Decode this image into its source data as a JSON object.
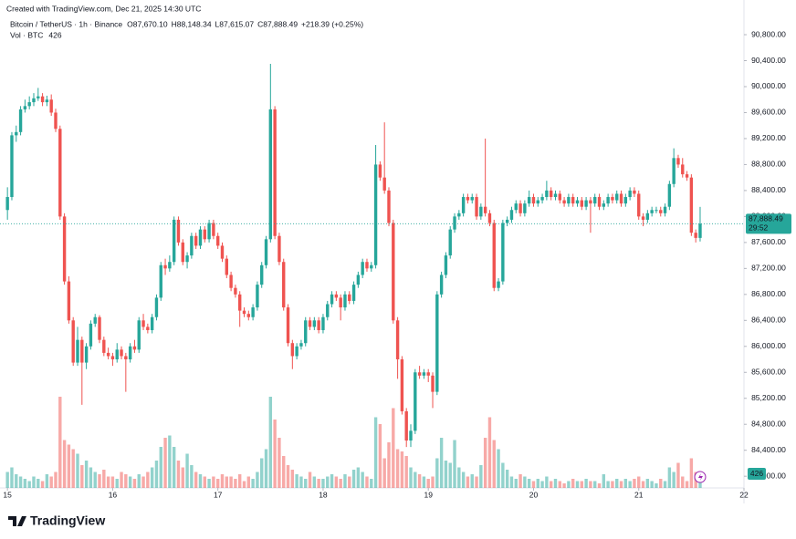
{
  "watermark": "Created with TradingView.com, Dec 21, 2025 14:30 UTC",
  "brand": "TradingView",
  "chart_data": {
    "type": "candlestick",
    "symbol": "Bitcoin / TetherUS · 1h · Binance",
    "ohlc": [
      "O87,670.10",
      "H88,148.34",
      "L87,615.07",
      "C87,888.49"
    ],
    "change": "+218.39 (+0.25%)",
    "volume_title": "Vol · BTC",
    "last_price_label": "87,888.49",
    "countdown": "29:52",
    "up_color": "#26a69a",
    "down_color": "#ef5350",
    "xlim": [
      -1.7,
      168
    ],
    "xticks": [
      {
        "value": 0,
        "label": "15"
      },
      {
        "value": 24,
        "label": "16"
      },
      {
        "value": 48,
        "label": "17"
      },
      {
        "value": 72,
        "label": "18"
      },
      {
        "value": 96,
        "label": "19"
      },
      {
        "value": 120,
        "label": "20"
      },
      {
        "value": 144,
        "label": "21"
      },
      {
        "value": 168,
        "label": "22"
      }
    ],
    "ylim": [
      83820,
      91334
    ],
    "yticks": [
      {
        "value": 84000,
        "label": "84,000.00"
      },
      {
        "value": 84400,
        "label": "84,400.00"
      },
      {
        "value": 84800,
        "label": "84,800.00"
      },
      {
        "value": 85200,
        "label": "85,200.00"
      },
      {
        "value": 85600,
        "label": "85,600.00"
      },
      {
        "value": 86000,
        "label": "86,000.00"
      },
      {
        "value": 86400,
        "label": "86,400.00"
      },
      {
        "value": 86800,
        "label": "86,800.00"
      },
      {
        "value": 87200,
        "label": "87,200.00"
      },
      {
        "value": 87600,
        "label": "87,600.00"
      },
      {
        "value": 88000,
        "label": "88,000.00"
      },
      {
        "value": 88400,
        "label": "88,400.00"
      },
      {
        "value": 88800,
        "label": "88,800.00"
      },
      {
        "value": 89200,
        "label": "89,200.00"
      },
      {
        "value": 89600,
        "label": "89,600.00"
      },
      {
        "value": 90000,
        "label": "90,000.00"
      },
      {
        "value": 90400,
        "label": "90,400.00"
      },
      {
        "value": 90800,
        "label": "90,800.00"
      }
    ],
    "vlim": [
      0,
      4800
    ],
    "candles": [
      [
        88100,
        88450,
        87950,
        88300,
        700
      ],
      [
        88300,
        89300,
        88250,
        89250,
        900
      ],
      [
        89250,
        89400,
        89150,
        89300,
        600
      ],
      [
        89300,
        89700,
        89250,
        89650,
        500
      ],
      [
        89650,
        89800,
        89600,
        89700,
        400
      ],
      [
        89700,
        89850,
        89650,
        89760,
        300
      ],
      [
        89760,
        89900,
        89700,
        89820,
        500
      ],
      [
        89820,
        89980,
        89780,
        89850,
        400
      ],
      [
        89850,
        89900,
        89700,
        89760,
        300
      ],
      [
        89760,
        89860,
        89700,
        89800,
        600
      ],
      [
        89800,
        89880,
        89550,
        89600,
        500
      ],
      [
        89600,
        89660,
        89300,
        89350,
        700
      ],
      [
        89350,
        89400,
        87950,
        88000,
        4000
      ],
      [
        88000,
        88050,
        86950,
        87000,
        2100
      ],
      [
        87000,
        87080,
        86350,
        86400,
        1900
      ],
      [
        86400,
        86450,
        85700,
        85750,
        1700
      ],
      [
        85750,
        86300,
        85700,
        86100,
        1500
      ],
      [
        86100,
        86150,
        85100,
        85750,
        1000
      ],
      [
        85750,
        86050,
        85650,
        86000,
        1200
      ],
      [
        86000,
        86400,
        85950,
        86350,
        900
      ],
      [
        86350,
        86500,
        86300,
        86450,
        700
      ],
      [
        86450,
        86480,
        86050,
        86100,
        600
      ],
      [
        86100,
        86150,
        85850,
        85900,
        800
      ],
      [
        85900,
        85980,
        85800,
        85850,
        500
      ],
      [
        85850,
        85900,
        85700,
        85800,
        500
      ],
      [
        85800,
        86050,
        85750,
        85950,
        400
      ],
      [
        85950,
        86000,
        85800,
        85850,
        700
      ],
      [
        85850,
        85900,
        85300,
        85800,
        600
      ],
      [
        85800,
        86050,
        85750,
        86000,
        500
      ],
      [
        86000,
        86100,
        85900,
        85950,
        400
      ],
      [
        85950,
        86450,
        85900,
        86400,
        600
      ],
      [
        86400,
        86500,
        86250,
        86300,
        500
      ],
      [
        86300,
        86350,
        86200,
        86250,
        700
      ],
      [
        86250,
        86500,
        86200,
        86450,
        900
      ],
      [
        86450,
        86800,
        86400,
        86750,
        1200
      ],
      [
        86750,
        87300,
        86700,
        87250,
        1800
      ],
      [
        87250,
        87350,
        87100,
        87200,
        2200
      ],
      [
        87200,
        87400,
        87150,
        87300,
        2300
      ],
      [
        87300,
        88000,
        87250,
        87950,
        1800
      ],
      [
        87950,
        88000,
        87550,
        87600,
        1200
      ],
      [
        87600,
        87650,
        87250,
        87300,
        900
      ],
      [
        87300,
        87450,
        87200,
        87400,
        1500
      ],
      [
        87400,
        87750,
        87350,
        87700,
        1000
      ],
      [
        87700,
        87750,
        87500,
        87550,
        700
      ],
      [
        87550,
        87850,
        87500,
        87800,
        600
      ],
      [
        87800,
        87850,
        87600,
        87650,
        500
      ],
      [
        87650,
        87950,
        87600,
        87900,
        400
      ],
      [
        87900,
        87950,
        87650,
        87700,
        500
      ],
      [
        87700,
        87750,
        87500,
        87550,
        400
      ],
      [
        87550,
        87600,
        87300,
        87350,
        600
      ],
      [
        87350,
        87400,
        87050,
        87100,
        500
      ],
      [
        87100,
        87150,
        86850,
        86900,
        500
      ],
      [
        86900,
        86950,
        86750,
        86800,
        400
      ],
      [
        86800,
        86850,
        86300,
        86550,
        600
      ],
      [
        86550,
        86600,
        86450,
        86500,
        300
      ],
      [
        86500,
        86550,
        86400,
        86450,
        500
      ],
      [
        86450,
        86650,
        86400,
        86600,
        400
      ],
      [
        86600,
        87000,
        86550,
        86950,
        700
      ],
      [
        86950,
        87300,
        86900,
        87250,
        1300
      ],
      [
        87250,
        87700,
        87200,
        87650,
        1700
      ],
      [
        87650,
        90350,
        87600,
        89650,
        4000
      ],
      [
        89650,
        89700,
        87650,
        87700,
        3000
      ],
      [
        87700,
        87750,
        87250,
        87300,
        2200
      ],
      [
        87300,
        87350,
        86550,
        86600,
        1400
      ],
      [
        86600,
        86650,
        86000,
        86050,
        1000
      ],
      [
        86050,
        86100,
        85650,
        85850,
        800
      ],
      [
        85850,
        86050,
        85800,
        86000,
        600
      ],
      [
        86000,
        86100,
        85950,
        86050,
        500
      ],
      [
        86050,
        86450,
        86000,
        86400,
        400
      ],
      [
        86400,
        86450,
        86250,
        86300,
        700
      ],
      [
        86300,
        86450,
        86250,
        86400,
        500
      ],
      [
        86400,
        86450,
        86200,
        86250,
        400
      ],
      [
        86250,
        86500,
        86200,
        86450,
        400
      ],
      [
        86450,
        86700,
        86400,
        86650,
        500
      ],
      [
        86650,
        86850,
        86600,
        86800,
        600
      ],
      [
        86800,
        86850,
        86700,
        86750,
        500
      ],
      [
        86750,
        86800,
        86400,
        86600,
        400
      ],
      [
        86600,
        86850,
        86550,
        86800,
        600
      ],
      [
        86800,
        86850,
        86650,
        86700,
        500
      ],
      [
        86700,
        87000,
        86650,
        86950,
        800
      ],
      [
        86950,
        87150,
        86900,
        87100,
        900
      ],
      [
        87100,
        87350,
        87050,
        87300,
        700
      ],
      [
        87300,
        87350,
        87150,
        87200,
        500
      ],
      [
        87200,
        87300,
        87150,
        87250,
        400
      ],
      [
        87250,
        89100,
        87200,
        88800,
        3100
      ],
      [
        88800,
        88850,
        88550,
        88600,
        2800
      ],
      [
        88600,
        89450,
        88350,
        88400,
        1300
      ],
      [
        88400,
        88450,
        87850,
        87900,
        2000
      ],
      [
        87900,
        87950,
        86350,
        86400,
        3500
      ],
      [
        86400,
        86450,
        85500,
        85800,
        1700
      ],
      [
        85800,
        85850,
        84950,
        85000,
        1600
      ],
      [
        85000,
        85050,
        84450,
        84550,
        1400
      ],
      [
        84550,
        84800,
        84450,
        84700,
        900
      ],
      [
        84700,
        85650,
        84650,
        85600,
        700
      ],
      [
        85600,
        85700,
        85500,
        85550,
        600
      ],
      [
        85550,
        85650,
        85500,
        85600,
        500
      ],
      [
        85600,
        85650,
        85450,
        85550,
        400
      ],
      [
        85550,
        85600,
        85050,
        85300,
        500
      ],
      [
        85300,
        86850,
        85250,
        86800,
        1300
      ],
      [
        86800,
        87150,
        86750,
        87100,
        2200
      ],
      [
        87100,
        87450,
        87050,
        87400,
        1200
      ],
      [
        87400,
        87850,
        87350,
        87800,
        1100
      ],
      [
        87800,
        88050,
        87750,
        88000,
        2100
      ],
      [
        88000,
        88100,
        87950,
        88050,
        900
      ],
      [
        88050,
        88350,
        88000,
        88300,
        700
      ],
      [
        88300,
        88350,
        88200,
        88250,
        500
      ],
      [
        88250,
        88350,
        88200,
        88300,
        600
      ],
      [
        88300,
        88350,
        87950,
        88000,
        500
      ],
      [
        88000,
        88200,
        87950,
        88150,
        1000
      ],
      [
        88150,
        89200,
        88000,
        88050,
        2200
      ],
      [
        88050,
        88100,
        87850,
        87900,
        3100
      ],
      [
        87900,
        87950,
        86850,
        86900,
        2100
      ],
      [
        86900,
        87050,
        86850,
        87000,
        1700
      ],
      [
        87000,
        87950,
        86950,
        87900,
        1100
      ],
      [
        87900,
        88000,
        87850,
        87950,
        800
      ],
      [
        87950,
        88150,
        87900,
        88100,
        500
      ],
      [
        88100,
        88250,
        88050,
        88200,
        400
      ],
      [
        88200,
        88250,
        88000,
        88050,
        600
      ],
      [
        88050,
        88250,
        88000,
        88200,
        500
      ],
      [
        88200,
        88400,
        88150,
        88300,
        400
      ],
      [
        88300,
        88350,
        88150,
        88200,
        300
      ],
      [
        88200,
        88300,
        88150,
        88250,
        400
      ],
      [
        88250,
        88350,
        88200,
        88300,
        300
      ],
      [
        88300,
        88550,
        88250,
        88400,
        500
      ],
      [
        88400,
        88450,
        88250,
        88300,
        300
      ],
      [
        88300,
        88400,
        88250,
        88350,
        400
      ],
      [
        88350,
        88400,
        88200,
        88250,
        300
      ],
      [
        88250,
        88300,
        88150,
        88200,
        200
      ],
      [
        88200,
        88350,
        88150,
        88300,
        300
      ],
      [
        88300,
        88350,
        88150,
        88200,
        400
      ],
      [
        88200,
        88300,
        88150,
        88250,
        300
      ],
      [
        88250,
        88300,
        88100,
        88150,
        300
      ],
      [
        88150,
        88300,
        88100,
        88250,
        400
      ],
      [
        88250,
        88300,
        87750,
        88200,
        300
      ],
      [
        88200,
        88350,
        88150,
        88300,
        300
      ],
      [
        88300,
        88350,
        88100,
        88150,
        200
      ],
      [
        88150,
        88250,
        88100,
        88200,
        600
      ],
      [
        88200,
        88350,
        88150,
        88300,
        300
      ],
      [
        88300,
        88350,
        88200,
        88250,
        300
      ],
      [
        88250,
        88400,
        88200,
        88350,
        400
      ],
      [
        88350,
        88400,
        88150,
        88200,
        300
      ],
      [
        88200,
        88350,
        88150,
        88300,
        400
      ],
      [
        88300,
        88450,
        88250,
        88400,
        300
      ],
      [
        88400,
        88450,
        88300,
        88350,
        400
      ],
      [
        88350,
        88400,
        87950,
        88000,
        500
      ],
      [
        88000,
        88050,
        87850,
        87950,
        300
      ],
      [
        87950,
        88100,
        87900,
        88050,
        400
      ],
      [
        88050,
        88150,
        88000,
        88100,
        300
      ],
      [
        88100,
        88150,
        88050,
        88100,
        200
      ],
      [
        88100,
        88150,
        88000,
        88050,
        400
      ],
      [
        88050,
        88200,
        88000,
        88150,
        300
      ],
      [
        88150,
        88550,
        88100,
        88500,
        900
      ],
      [
        88500,
        89050,
        88450,
        88900,
        700
      ],
      [
        88900,
        88950,
        88750,
        88800,
        1100
      ],
      [
        88800,
        88900,
        88600,
        88650,
        500
      ],
      [
        88650,
        88700,
        88550,
        88600,
        300
      ],
      [
        88600,
        88650,
        87700,
        87750,
        1300
      ],
      [
        87750,
        87800,
        87600,
        87670.1,
        700
      ],
      [
        87670.1,
        88148.34,
        87615.07,
        87888.49,
        426
      ]
    ]
  }
}
